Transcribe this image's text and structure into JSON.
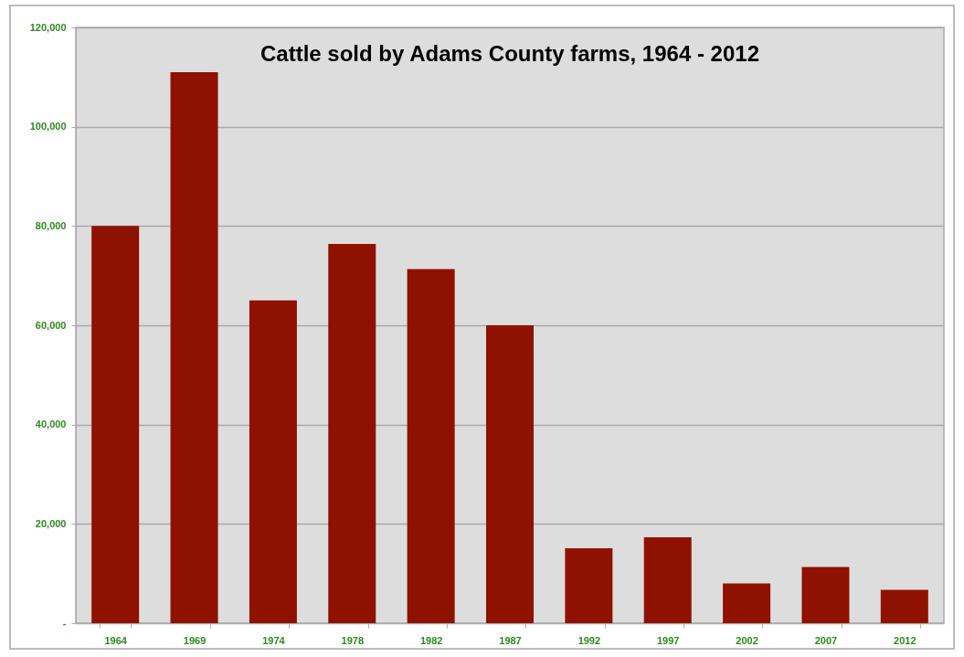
{
  "chart_data": {
    "type": "bar",
    "title": "Cattle sold by Adams County farms, 1964 - 2012",
    "categories": [
      "1964",
      "1969",
      "1974",
      "1978",
      "1982",
      "1987",
      "1992",
      "1997",
      "2002",
      "2007",
      "2012"
    ],
    "values": [
      80000,
      111000,
      65000,
      76400,
      71300,
      60000,
      15100,
      17300,
      8000,
      11300,
      6700
    ],
    "color": "#8f1100",
    "ylim": [
      0,
      120000
    ],
    "yticks": [
      {
        "value": 0,
        "label": "-"
      },
      {
        "value": 20000,
        "label": "20,000"
      },
      {
        "value": 40000,
        "label": "40,000"
      },
      {
        "value": 60000,
        "label": "60,000"
      },
      {
        "value": 80000,
        "label": "80,000"
      },
      {
        "value": 100000,
        "label": "100,000"
      },
      {
        "value": 120000,
        "label": "120,000"
      }
    ],
    "grid": "y"
  }
}
